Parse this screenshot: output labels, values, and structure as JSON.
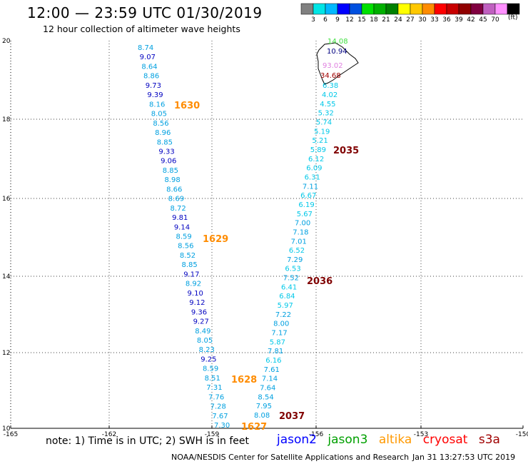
{
  "title": "12:00 — 23:59 UTC 01/30/2019",
  "subtitle": "12 hour collection of altimeter wave heights",
  "scale": {
    "colors": [
      "#808080",
      "#00e5e5",
      "#00b8ff",
      "#0000ff",
      "#0050e0",
      "#00e000",
      "#00b000",
      "#008000",
      "#ffff00",
      "#ffc800",
      "#ff8c00",
      "#ff0000",
      "#c80000",
      "#900000",
      "#800040",
      "#c060c0",
      "#ff90ff",
      "#000000"
    ],
    "tick_labels": [
      "3",
      "6",
      "9",
      "12",
      "15",
      "18",
      "21",
      "24",
      "27",
      "30",
      "33",
      "36",
      "39",
      "42",
      "45",
      "70"
    ],
    "units": "(ft)"
  },
  "axes": {
    "x_ticks": [
      "-165",
      "-162",
      "-159",
      "-156",
      "-153",
      "-150"
    ],
    "y_ticks": [
      "20",
      "18",
      "16",
      "14",
      "12",
      "10"
    ]
  },
  "tracks": [
    {
      "labels": [
        {
          "text": "8.74",
          "color": "#00a0e0"
        },
        {
          "text": "9.07",
          "color": "#0000c0"
        },
        {
          "text": "8.64",
          "color": "#00a0e0"
        },
        {
          "text": "8.86",
          "color": "#00a0e0"
        },
        {
          "text": "9.73",
          "color": "#0000c0"
        },
        {
          "text": "9.39",
          "color": "#0000c0"
        },
        {
          "text": "8.16",
          "color": "#00a0e0"
        },
        {
          "text": "8.05",
          "color": "#00a0e0"
        },
        {
          "text": "8.56",
          "color": "#00a0e0"
        },
        {
          "text": "8.96",
          "color": "#00a0e0"
        },
        {
          "text": "8.85",
          "color": "#00a0e0"
        },
        {
          "text": "9.33",
          "color": "#0000c0"
        },
        {
          "text": "9.06",
          "color": "#0000c0"
        },
        {
          "text": "8.85",
          "color": "#00a0e0"
        },
        {
          "text": "8.98",
          "color": "#00a0e0"
        },
        {
          "text": "8.66",
          "color": "#00a0e0"
        },
        {
          "text": "8.69",
          "color": "#00a0e0"
        },
        {
          "text": "8.72",
          "color": "#00a0e0"
        },
        {
          "text": "9.81",
          "color": "#0000c0"
        },
        {
          "text": "9.14",
          "color": "#0000c0"
        },
        {
          "text": "8.59",
          "color": "#00a0e0"
        },
        {
          "text": "8.56",
          "color": "#00a0e0"
        },
        {
          "text": "8.52",
          "color": "#00a0e0"
        },
        {
          "text": "8.85",
          "color": "#00a0e0"
        },
        {
          "text": "9.17",
          "color": "#0000c0"
        },
        {
          "text": "8.92",
          "color": "#00a0e0"
        },
        {
          "text": "9.10",
          "color": "#0000c0"
        },
        {
          "text": "9.12",
          "color": "#0000c0"
        },
        {
          "text": "9.36",
          "color": "#0000c0"
        },
        {
          "text": "9.27",
          "color": "#0000c0"
        },
        {
          "text": "8.49",
          "color": "#00a0e0"
        },
        {
          "text": "8.05",
          "color": "#00a0e0"
        },
        {
          "text": "8.23",
          "color": "#00a0e0"
        },
        {
          "text": "9.25",
          "color": "#0000c0"
        },
        {
          "text": "8.59",
          "color": "#00a0e0"
        },
        {
          "text": "8.51",
          "color": "#00a0e0"
        },
        {
          "text": "7.31",
          "color": "#00a0e0"
        },
        {
          "text": "7.76",
          "color": "#00a0e0"
        },
        {
          "text": "7.28",
          "color": "#00a0e0"
        },
        {
          "text": "7.67",
          "color": "#00a0e0"
        },
        {
          "text": "7.30",
          "color": "#00a0e0"
        }
      ]
    },
    {
      "labels": [
        {
          "text": "14.08",
          "color": "#40e040"
        },
        {
          "text": "10.94",
          "color": "#000080"
        },
        {
          "text": "93.02",
          "color": "#e080e0"
        },
        {
          "text": "34.68",
          "color": "#a00000"
        },
        {
          "text": "6.38",
          "color": "#00c8e8"
        },
        {
          "text": "4.02",
          "color": "#00c8e8"
        },
        {
          "text": "4.55",
          "color": "#00c8e8"
        },
        {
          "text": "5.32",
          "color": "#00c8e8"
        },
        {
          "text": "5.74",
          "color": "#00c8e8"
        },
        {
          "text": "5.19",
          "color": "#00c8e8"
        },
        {
          "text": "5.21",
          "color": "#00c8e8"
        },
        {
          "text": "5.89",
          "color": "#00c8e8"
        },
        {
          "text": "6.12",
          "color": "#00c8e8"
        },
        {
          "text": "6.09",
          "color": "#00c8e8"
        },
        {
          "text": "6.31",
          "color": "#00c8e8"
        },
        {
          "text": "7.11",
          "color": "#00a0e0"
        },
        {
          "text": "6.67",
          "color": "#00c8e8"
        },
        {
          "text": "6.19",
          "color": "#00c8e8"
        },
        {
          "text": "5.67",
          "color": "#00c8e8"
        },
        {
          "text": "7.00",
          "color": "#00a0e0"
        },
        {
          "text": "7.18",
          "color": "#00a0e0"
        },
        {
          "text": "7.01",
          "color": "#00a0e0"
        },
        {
          "text": "6.52",
          "color": "#00c8e8"
        },
        {
          "text": "7.29",
          "color": "#00a0e0"
        },
        {
          "text": "6.53",
          "color": "#00c8e8"
        },
        {
          "text": "7.52",
          "color": "#00a0e0"
        },
        {
          "text": "6.41",
          "color": "#00c8e8"
        },
        {
          "text": "6.84",
          "color": "#00c8e8"
        },
        {
          "text": "5.97",
          "color": "#00c8e8"
        },
        {
          "text": "7.22",
          "color": "#00a0e0"
        },
        {
          "text": "8.00",
          "color": "#00a0e0"
        },
        {
          "text": "7.17",
          "color": "#00a0e0"
        },
        {
          "text": "5.87",
          "color": "#00c8e8"
        },
        {
          "text": "7.81",
          "color": "#00a0e0"
        },
        {
          "text": "6.16",
          "color": "#00c8e8"
        },
        {
          "text": "7.61",
          "color": "#00a0e0"
        },
        {
          "text": "7.14",
          "color": "#00a0e0"
        },
        {
          "text": "7.64",
          "color": "#00a0e0"
        },
        {
          "text": "8.54",
          "color": "#00a0e0"
        },
        {
          "text": "7.95",
          "color": "#00a0e0"
        },
        {
          "text": "8.08",
          "color": "#00a0e0"
        }
      ]
    }
  ],
  "time_labels": [
    {
      "text": "1630",
      "color": "#ff8c00"
    },
    {
      "text": "1629",
      "color": "#ff8c00"
    },
    {
      "text": "1628",
      "color": "#ff8c00"
    },
    {
      "text": "1627",
      "color": "#ff8c00"
    },
    {
      "text": "2035",
      "color": "#800000"
    },
    {
      "text": "2036",
      "color": "#800000"
    },
    {
      "text": "2037",
      "color": "#800000"
    }
  ],
  "legend": {
    "note": "note: 1) Time is in UTC; 2) SWH is in feet",
    "satellites": [
      {
        "name": "jason2",
        "color": "#0000ff"
      },
      {
        "name": "jason3",
        "color": "#00a000"
      },
      {
        "name": "altika",
        "color": "#ff9900"
      },
      {
        "name": "cryosat",
        "color": "#ff0000"
      },
      {
        "name": "s3a",
        "color": "#a00000"
      }
    ]
  },
  "credit": "NOAA/NESDIS Center for Satellite Applications and Research",
  "timestamp": "Jan 31 13:27:53 UTC 2019"
}
